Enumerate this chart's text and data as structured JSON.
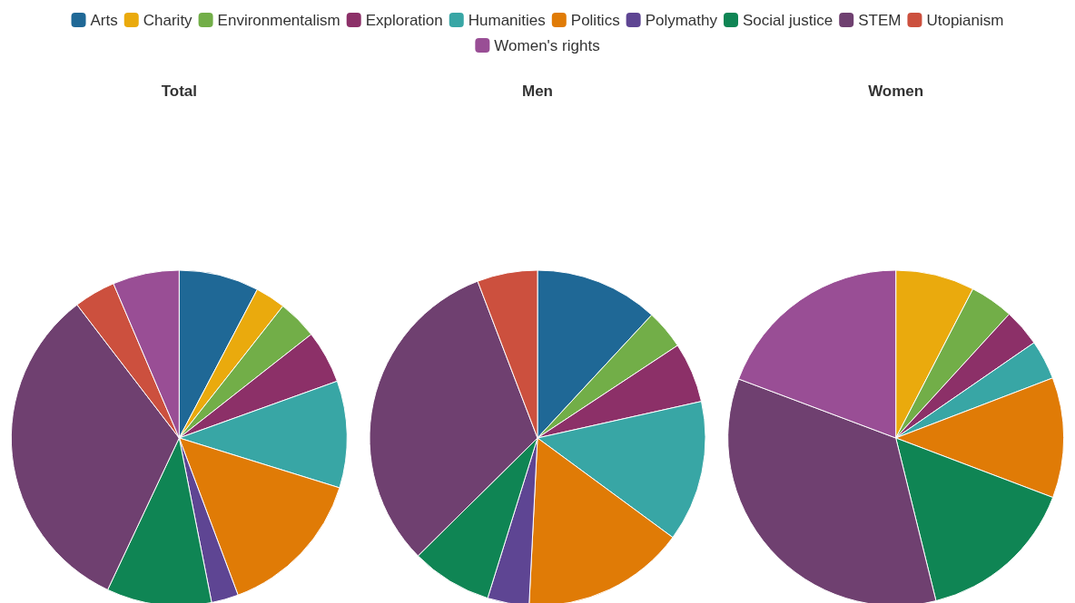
{
  "chart_data": [
    {
      "type": "pie",
      "title": "Total",
      "legend": "top",
      "categories": [
        "Arts",
        "Charity",
        "Environmentalism",
        "Exploration",
        "Humanities",
        "Politics",
        "Polymathy",
        "Social justice",
        "STEM",
        "Utopianism",
        "Women's rights"
      ],
      "values": [
        7.7,
        2.9,
        3.8,
        5.1,
        10.3,
        14.5,
        2.6,
        10.1,
        32.6,
        4,
        6.4
      ],
      "colors": [
        "#1f6896",
        "#eaaa0d",
        "#72ae48",
        "#8c3068",
        "#38a6a5",
        "#e07b06",
        "#5e4593",
        "#0f8554",
        "#6f4070",
        "#cc503e",
        "#994e95"
      ]
    },
    {
      "type": "pie",
      "title": "Men",
      "categories": [
        null,
        null,
        null,
        null,
        null,
        null,
        null,
        null,
        null,
        null,
        null
      ],
      "values": [
        11.9,
        0,
        3.8,
        5.8,
        13.6,
        15.7,
        4,
        7.8,
        31.6,
        5.8,
        0
      ],
      "colors": [
        "#1f6896",
        "#eaaa0d",
        "#72ae48",
        "#8c3068",
        "#38a6a5",
        "#e07b06",
        "#5e4593",
        "#0f8554",
        "#6f4070",
        "#cc503e",
        "#994e95"
      ]
    },
    {
      "type": "pie",
      "title": "Women",
      "categories": [
        null,
        null,
        null,
        null,
        null,
        null,
        null,
        null,
        null,
        null,
        null
      ],
      "values": [
        0,
        7.6,
        4.2,
        3.6,
        3.8,
        11.6,
        0,
        15.4,
        34.6,
        0,
        19.3
      ],
      "colors": [
        "#1f6896",
        "#eaaa0d",
        "#72ae48",
        "#8c3068",
        "#38a6a5",
        "#e07b06",
        "#5e4593",
        "#0f8554",
        "#6f4070",
        "#cc503e",
        "#994e95"
      ]
    }
  ]
}
